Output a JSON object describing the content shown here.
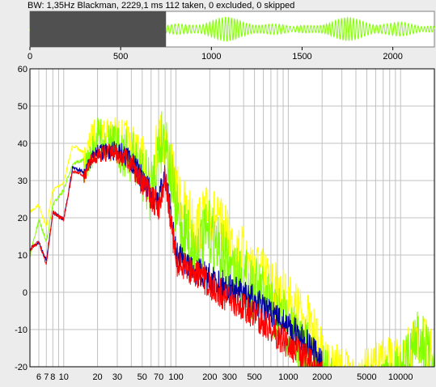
{
  "status_text": "BW: 1,35Hz Blackman, 2229,1 ms 112 taken, 0 excluded, 0 skipped",
  "colors": {
    "background": "#ececec",
    "plot_bg": "#ffffff",
    "grid": "#c0c0c0",
    "selection": "#505050",
    "wave": "#80ff00",
    "series_max": "#ffff00",
    "series_avg_upper": "#80ff00",
    "series_dark": "#0000a0",
    "series_red": "#ff0000"
  },
  "chart_data": [
    {
      "type": "line",
      "name": "time-overview",
      "xlim": [
        0,
        2229.1
      ],
      "xticks": [
        0,
        500,
        1000,
        1500,
        2000
      ],
      "xtick_labels": [
        "0",
        "500",
        "1000",
        "1500",
        "2000"
      ],
      "selection_ms": [
        0,
        750
      ]
    },
    {
      "type": "line",
      "name": "spectrum",
      "xscale": "log",
      "xlim": [
        5,
        20000
      ],
      "ylim": [
        -20,
        60
      ],
      "grid": true,
      "yticks": [
        -20,
        -10,
        0,
        10,
        20,
        30,
        40,
        50,
        60
      ],
      "ytick_labels": [
        "-20",
        "-10",
        "0",
        "10",
        "20",
        "30",
        "40",
        "50",
        "60"
      ],
      "xticks": [
        6,
        7,
        8,
        10,
        20,
        30,
        50,
        70,
        100,
        200,
        300,
        500,
        1000,
        2000,
        5000,
        10000
      ],
      "xtick_labels": [
        "6",
        "7",
        "8",
        "10",
        "20",
        "30",
        "50",
        "70",
        "100",
        "200",
        "300",
        "500",
        "1000",
        "2000",
        "5000",
        "10000"
      ],
      "series": [
        {
          "color": "yellow",
          "x": [
            5,
            6,
            7,
            8,
            10,
            12,
            15,
            18,
            20,
            25,
            30,
            40,
            50,
            60,
            70,
            80,
            100,
            150,
            200,
            300,
            500,
            700,
            1000,
            1500,
            2000,
            3000,
            5000,
            7000,
            10000,
            15000,
            20000
          ],
          "y": [
            22,
            24,
            18,
            28,
            30,
            40,
            38,
            46,
            48,
            48,
            47,
            46,
            42,
            38,
            50,
            48,
            35,
            25,
            30,
            22,
            15,
            10,
            5,
            0,
            -10,
            -15,
            -15,
            -12,
            -12,
            -5,
            -10
          ]
        },
        {
          "color": "green",
          "x": [
            5,
            6,
            7,
            8,
            10,
            12,
            15,
            18,
            20,
            25,
            30,
            40,
            50,
            60,
            70,
            80,
            100,
            150,
            200,
            300,
            500,
            700,
            1000,
            1500,
            2000,
            3000,
            5000,
            7000,
            10000,
            15000,
            20000
          ],
          "y": [
            10,
            20,
            14,
            24,
            28,
            35,
            36,
            42,
            47,
            46,
            45,
            44,
            40,
            36,
            48,
            52,
            30,
            20,
            25,
            15,
            10,
            5,
            0,
            -8,
            -14,
            -18,
            -18,
            -18,
            -14,
            -2,
            -15
          ]
        },
        {
          "color": "dark-blue",
          "x": [
            5,
            6,
            7,
            8,
            10,
            12,
            15,
            18,
            20,
            25,
            30,
            40,
            50,
            60,
            70,
            80,
            100,
            150,
            200,
            300,
            500,
            700,
            1000,
            1500,
            2000
          ],
          "y": [
            12,
            14,
            9,
            22,
            20,
            34,
            33,
            38,
            40,
            40,
            41,
            39,
            34,
            30,
            28,
            36,
            14,
            10,
            8,
            5,
            2,
            -2,
            -5,
            -10,
            -15
          ]
        },
        {
          "color": "red",
          "x": [
            5,
            6,
            7,
            8,
            10,
            12,
            15,
            18,
            20,
            25,
            30,
            40,
            50,
            60,
            70,
            80,
            100,
            150,
            200,
            300,
            500,
            700,
            1000,
            1500,
            2000
          ],
          "y": [
            12,
            14,
            8,
            22,
            20,
            33,
            32,
            38,
            39,
            40,
            40,
            38,
            33,
            29,
            27,
            35,
            12,
            9,
            6,
            2,
            -2,
            -6,
            -10,
            -14,
            -18
          ]
        }
      ]
    }
  ]
}
